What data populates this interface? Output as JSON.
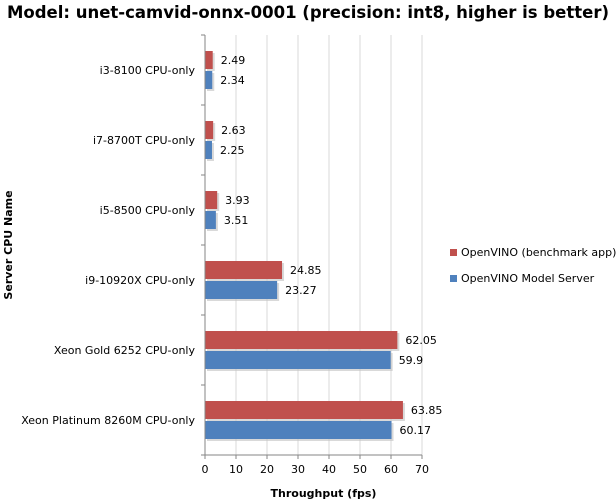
{
  "chart_data": {
    "type": "bar",
    "orientation": "horizontal",
    "title": "Model: unet-camvid-onnx-0001 (precision: int8, higher is better)",
    "xlabel": "Throughput (fps)",
    "ylabel": "Server CPU Name",
    "categories": [
      "i3-8100 CPU-only",
      "i7-8700T CPU-only",
      "i5-8500 CPU-only",
      "i9-10920X CPU-only",
      "Xeon Gold 6252 CPU-only",
      "Xeon Platinum 8260M CPU-only"
    ],
    "series": [
      {
        "name": "OpenVINO (benchmark app)",
        "color": "#c0504d",
        "values": [
          2.49,
          2.63,
          3.93,
          24.85,
          62.05,
          63.85
        ],
        "labels": [
          "2.49",
          "2.63",
          "3.93",
          "24.85",
          "62.05",
          "63.85"
        ]
      },
      {
        "name": "OpenVINO Model Server",
        "color": "#4f81bd",
        "values": [
          2.34,
          2.25,
          3.51,
          23.27,
          59.9,
          60.17
        ],
        "labels": [
          "2.34",
          "2.25",
          "3.51",
          "23.27",
          "59.9",
          "60.17"
        ]
      }
    ],
    "xlim": [
      0,
      70
    ],
    "xticks": [
      0,
      10,
      20,
      30,
      40,
      50,
      60,
      70
    ],
    "grid": true,
    "legend": "right"
  }
}
